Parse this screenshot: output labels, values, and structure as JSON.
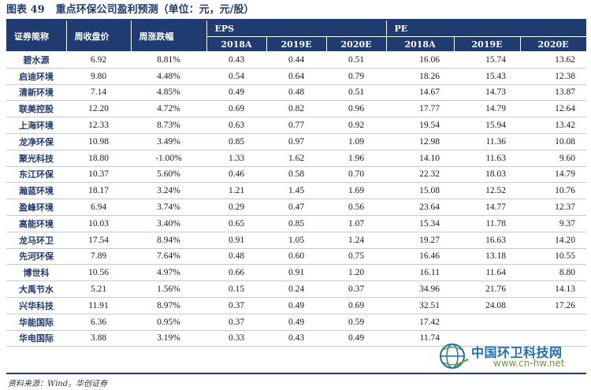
{
  "title": {
    "figure_no": "图表 49",
    "caption": "重点环保公司盈利预测（单位：元，元/股）"
  },
  "table": {
    "headers": {
      "name": "证券简称",
      "close": "周收盘价",
      "change": "周涨跌幅",
      "eps": "EPS",
      "pe": "PE",
      "years": [
        "2018A",
        "2019E",
        "2020E"
      ]
    },
    "rows": [
      {
        "name": "碧水源",
        "close": "6.92",
        "change": "8.81%",
        "eps": [
          "0.43",
          "0.44",
          "0.51"
        ],
        "pe": [
          "16.06",
          "15.74",
          "13.62"
        ]
      },
      {
        "name": "启迪环境",
        "close": "9.80",
        "change": "4.48%",
        "eps": [
          "0.54",
          "0.64",
          "0.79"
        ],
        "pe": [
          "18.26",
          "15.43",
          "12.38"
        ]
      },
      {
        "name": "清新环境",
        "close": "7.14",
        "change": "4.85%",
        "eps": [
          "0.49",
          "0.48",
          "0.51"
        ],
        "pe": [
          "14.67",
          "14.73",
          "13.87"
        ]
      },
      {
        "name": "联美控股",
        "close": "12.20",
        "change": "4.72%",
        "eps": [
          "0.69",
          "0.82",
          "0.96"
        ],
        "pe": [
          "17.77",
          "14.79",
          "12.64"
        ]
      },
      {
        "name": "上海环境",
        "close": "12.33",
        "change": "8.73%",
        "eps": [
          "0.63",
          "0.77",
          "0.92"
        ],
        "pe": [
          "19.54",
          "15.94",
          "13.42"
        ]
      },
      {
        "name": "龙净环保",
        "close": "10.98",
        "change": "3.49%",
        "eps": [
          "0.85",
          "0.97",
          "1.09"
        ],
        "pe": [
          "12.98",
          "11.36",
          "10.08"
        ]
      },
      {
        "name": "聚光科技",
        "close": "18.80",
        "change": "-1.00%",
        "eps": [
          "1.33",
          "1.62",
          "1.96"
        ],
        "pe": [
          "14.10",
          "11.63",
          "9.60"
        ]
      },
      {
        "name": "东江环保",
        "close": "10.37",
        "change": "5.60%",
        "eps": [
          "0.46",
          "0.58",
          "0.70"
        ],
        "pe": [
          "22.32",
          "18.03",
          "14.79"
        ]
      },
      {
        "name": "瀚蓝环境",
        "close": "18.17",
        "change": "3.24%",
        "eps": [
          "1.21",
          "1.45",
          "1.69"
        ],
        "pe": [
          "15.08",
          "12.52",
          "10.76"
        ]
      },
      {
        "name": "盈峰环境",
        "close": "6.94",
        "change": "3.74%",
        "eps": [
          "0.29",
          "0.47",
          "0.56"
        ],
        "pe": [
          "23.64",
          "14.77",
          "12.37"
        ]
      },
      {
        "name": "高能环境",
        "close": "10.03",
        "change": "3.40%",
        "eps": [
          "0.65",
          "0.85",
          "1.07"
        ],
        "pe": [
          "15.34",
          "11.78",
          "9.37"
        ]
      },
      {
        "name": "龙马环卫",
        "close": "17.54",
        "change": "8.94%",
        "eps": [
          "0.91",
          "1.05",
          "1.24"
        ],
        "pe": [
          "19.27",
          "16.63",
          "14.20"
        ]
      },
      {
        "name": "先河环保",
        "close": "7.89",
        "change": "7.64%",
        "eps": [
          "0.48",
          "0.60",
          "0.75"
        ],
        "pe": [
          "16.46",
          "13.18",
          "10.55"
        ]
      },
      {
        "name": "博世科",
        "close": "10.56",
        "change": "4.97%",
        "eps": [
          "0.66",
          "0.91",
          "1.20"
        ],
        "pe": [
          "16.11",
          "11.64",
          "8.80"
        ]
      },
      {
        "name": "大禹节水",
        "close": "5.21",
        "change": "1.56%",
        "eps": [
          "0.15",
          "0.24",
          "0.37"
        ],
        "pe": [
          "34.96",
          "21.76",
          "14.13"
        ]
      },
      {
        "name": "兴华科技",
        "close": "11.91",
        "change": "8.97%",
        "eps": [
          "0.37",
          "0.49",
          "0.69"
        ],
        "pe": [
          "32.51",
          "24.08",
          "17.26"
        ]
      },
      {
        "name": "华能国际",
        "close": "6.36",
        "change": "0.95%",
        "eps": [
          "0.37",
          "0.49",
          "0.59"
        ],
        "pe": [
          "17.42",
          "",
          ""
        ]
      },
      {
        "name": "华电国际",
        "close": "3.88",
        "change": "3.19%",
        "eps": [
          "0.33",
          "0.43",
          "0.49"
        ],
        "pe": [
          "11.74",
          "",
          ""
        ]
      }
    ]
  },
  "source": "资料来源：Wind，华创证券",
  "watermark": {
    "name": "中国环卫科技网",
    "url": "www.cn-hw.net"
  },
  "colors": {
    "header_bg": "#1f3b70",
    "row_rule": "#c9c9c9",
    "watermark_blue": "#1d6fb8",
    "watermark_green": "#6a9f3a"
  }
}
